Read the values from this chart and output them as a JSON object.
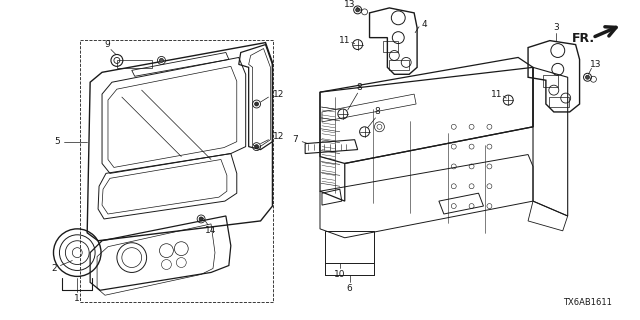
{
  "bg_color": "#ffffff",
  "line_color": "#1a1a1a",
  "label_fontsize": 6.5,
  "code_fontsize": 6.0,
  "diagram_code_text": "TX6AB1611"
}
